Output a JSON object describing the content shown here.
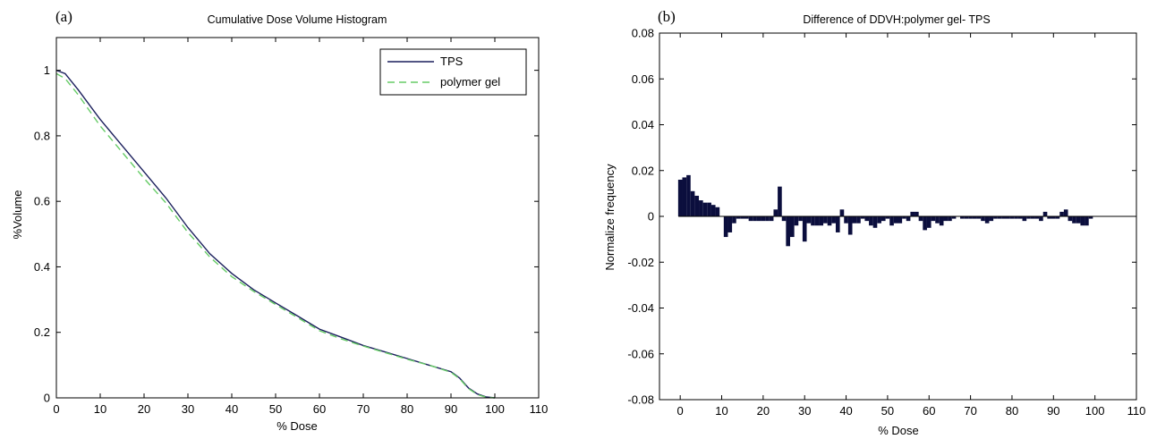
{
  "chart_data": [
    {
      "panel": "(a)",
      "type": "line",
      "title": "Cumulative Dose Volume Histogram",
      "xlabel": "% Dose",
      "ylabel": "%Volume",
      "xlim": [
        0,
        110
      ],
      "ylim": [
        0,
        1.1
      ],
      "xticks": [
        0,
        10,
        20,
        30,
        40,
        50,
        60,
        70,
        80,
        90,
        100,
        110
      ],
      "yticks": [
        0,
        0.2,
        0.4,
        0.6,
        0.8,
        1
      ],
      "legend": "top-right",
      "series": [
        {
          "name": "TPS",
          "color": "#1a1f5c",
          "style": "solid",
          "x": [
            0,
            2,
            5,
            10,
            15,
            20,
            25,
            30,
            35,
            40,
            45,
            50,
            55,
            60,
            65,
            70,
            75,
            80,
            85,
            90,
            92,
            94,
            96,
            98,
            100
          ],
          "y": [
            1.0,
            0.99,
            0.94,
            0.85,
            0.77,
            0.69,
            0.61,
            0.52,
            0.44,
            0.38,
            0.33,
            0.29,
            0.25,
            0.21,
            0.185,
            0.16,
            0.14,
            0.12,
            0.1,
            0.08,
            0.06,
            0.03,
            0.012,
            0.003,
            0
          ]
        },
        {
          "name": "polymer gel",
          "color": "#66cc66",
          "style": "dashed",
          "x": [
            0,
            2,
            5,
            10,
            15,
            20,
            25,
            30,
            35,
            40,
            45,
            50,
            55,
            60,
            65,
            70,
            75,
            80,
            85,
            90,
            92,
            94,
            96,
            98,
            100
          ],
          "y": [
            0.99,
            0.975,
            0.925,
            0.83,
            0.75,
            0.67,
            0.595,
            0.505,
            0.43,
            0.37,
            0.325,
            0.285,
            0.245,
            0.205,
            0.18,
            0.158,
            0.138,
            0.118,
            0.1,
            0.078,
            0.058,
            0.028,
            0.01,
            0.002,
            0
          ]
        }
      ]
    },
    {
      "panel": "(b)",
      "type": "bar",
      "title": "Difference of DDVH:polymer gel- TPS",
      "xlabel": "% Dose",
      "ylabel": "Normalize frequency",
      "xlim": [
        -5,
        110
      ],
      "ylim": [
        -0.08,
        0.08
      ],
      "xticks": [
        0,
        10,
        20,
        30,
        40,
        50,
        60,
        70,
        80,
        90,
        100,
        110
      ],
      "yticks": [
        -0.08,
        -0.06,
        -0.04,
        -0.02,
        0,
        0.02,
        0.04,
        0.06,
        0.08
      ],
      "bar_color": "#0b0e3d",
      "x": [
        0,
        1,
        2,
        3,
        4,
        5,
        6,
        7,
        8,
        9,
        10,
        11,
        12,
        13,
        14,
        15,
        16,
        17,
        18,
        19,
        20,
        21,
        22,
        23,
        24,
        25,
        26,
        27,
        28,
        29,
        30,
        31,
        32,
        33,
        34,
        35,
        36,
        37,
        38,
        39,
        40,
        41,
        42,
        43,
        44,
        45,
        46,
        47,
        48,
        49,
        50,
        51,
        52,
        53,
        54,
        55,
        56,
        57,
        58,
        59,
        60,
        61,
        62,
        63,
        64,
        65,
        66,
        67,
        68,
        69,
        70,
        71,
        72,
        73,
        74,
        75,
        76,
        77,
        78,
        79,
        80,
        81,
        82,
        83,
        84,
        85,
        86,
        87,
        88,
        89,
        90,
        91,
        92,
        93,
        94,
        95,
        96,
        97,
        98,
        99
      ],
      "values": [
        0.016,
        0.017,
        0.018,
        0.011,
        0.009,
        0.007,
        0.006,
        0.006,
        0.005,
        0.004,
        0.0,
        -0.009,
        -0.007,
        -0.003,
        -0.001,
        -0.001,
        -0.001,
        -0.002,
        -0.002,
        -0.002,
        -0.002,
        -0.002,
        -0.002,
        0.003,
        0.013,
        -0.002,
        -0.013,
        -0.009,
        -0.004,
        -0.002,
        -0.011,
        -0.003,
        -0.004,
        -0.004,
        -0.004,
        -0.003,
        -0.004,
        -0.003,
        -0.007,
        0.003,
        -0.003,
        -0.008,
        -0.003,
        -0.003,
        -0.001,
        -0.002,
        -0.004,
        -0.005,
        -0.003,
        -0.002,
        -0.001,
        -0.004,
        -0.003,
        -0.003,
        -0.001,
        -0.002,
        0.002,
        0.002,
        -0.002,
        -0.006,
        -0.005,
        -0.002,
        -0.003,
        -0.004,
        -0.002,
        -0.002,
        -0.001,
        0.0,
        -0.001,
        -0.001,
        -0.001,
        -0.001,
        -0.001,
        -0.002,
        -0.003,
        -0.002,
        -0.001,
        -0.001,
        -0.001,
        -0.001,
        -0.001,
        -0.001,
        -0.001,
        -0.002,
        -0.001,
        -0.001,
        -0.001,
        -0.002,
        0.002,
        -0.001,
        -0.001,
        -0.001,
        0.002,
        0.003,
        -0.002,
        -0.003,
        -0.003,
        -0.004,
        -0.004,
        -0.001
      ]
    }
  ]
}
